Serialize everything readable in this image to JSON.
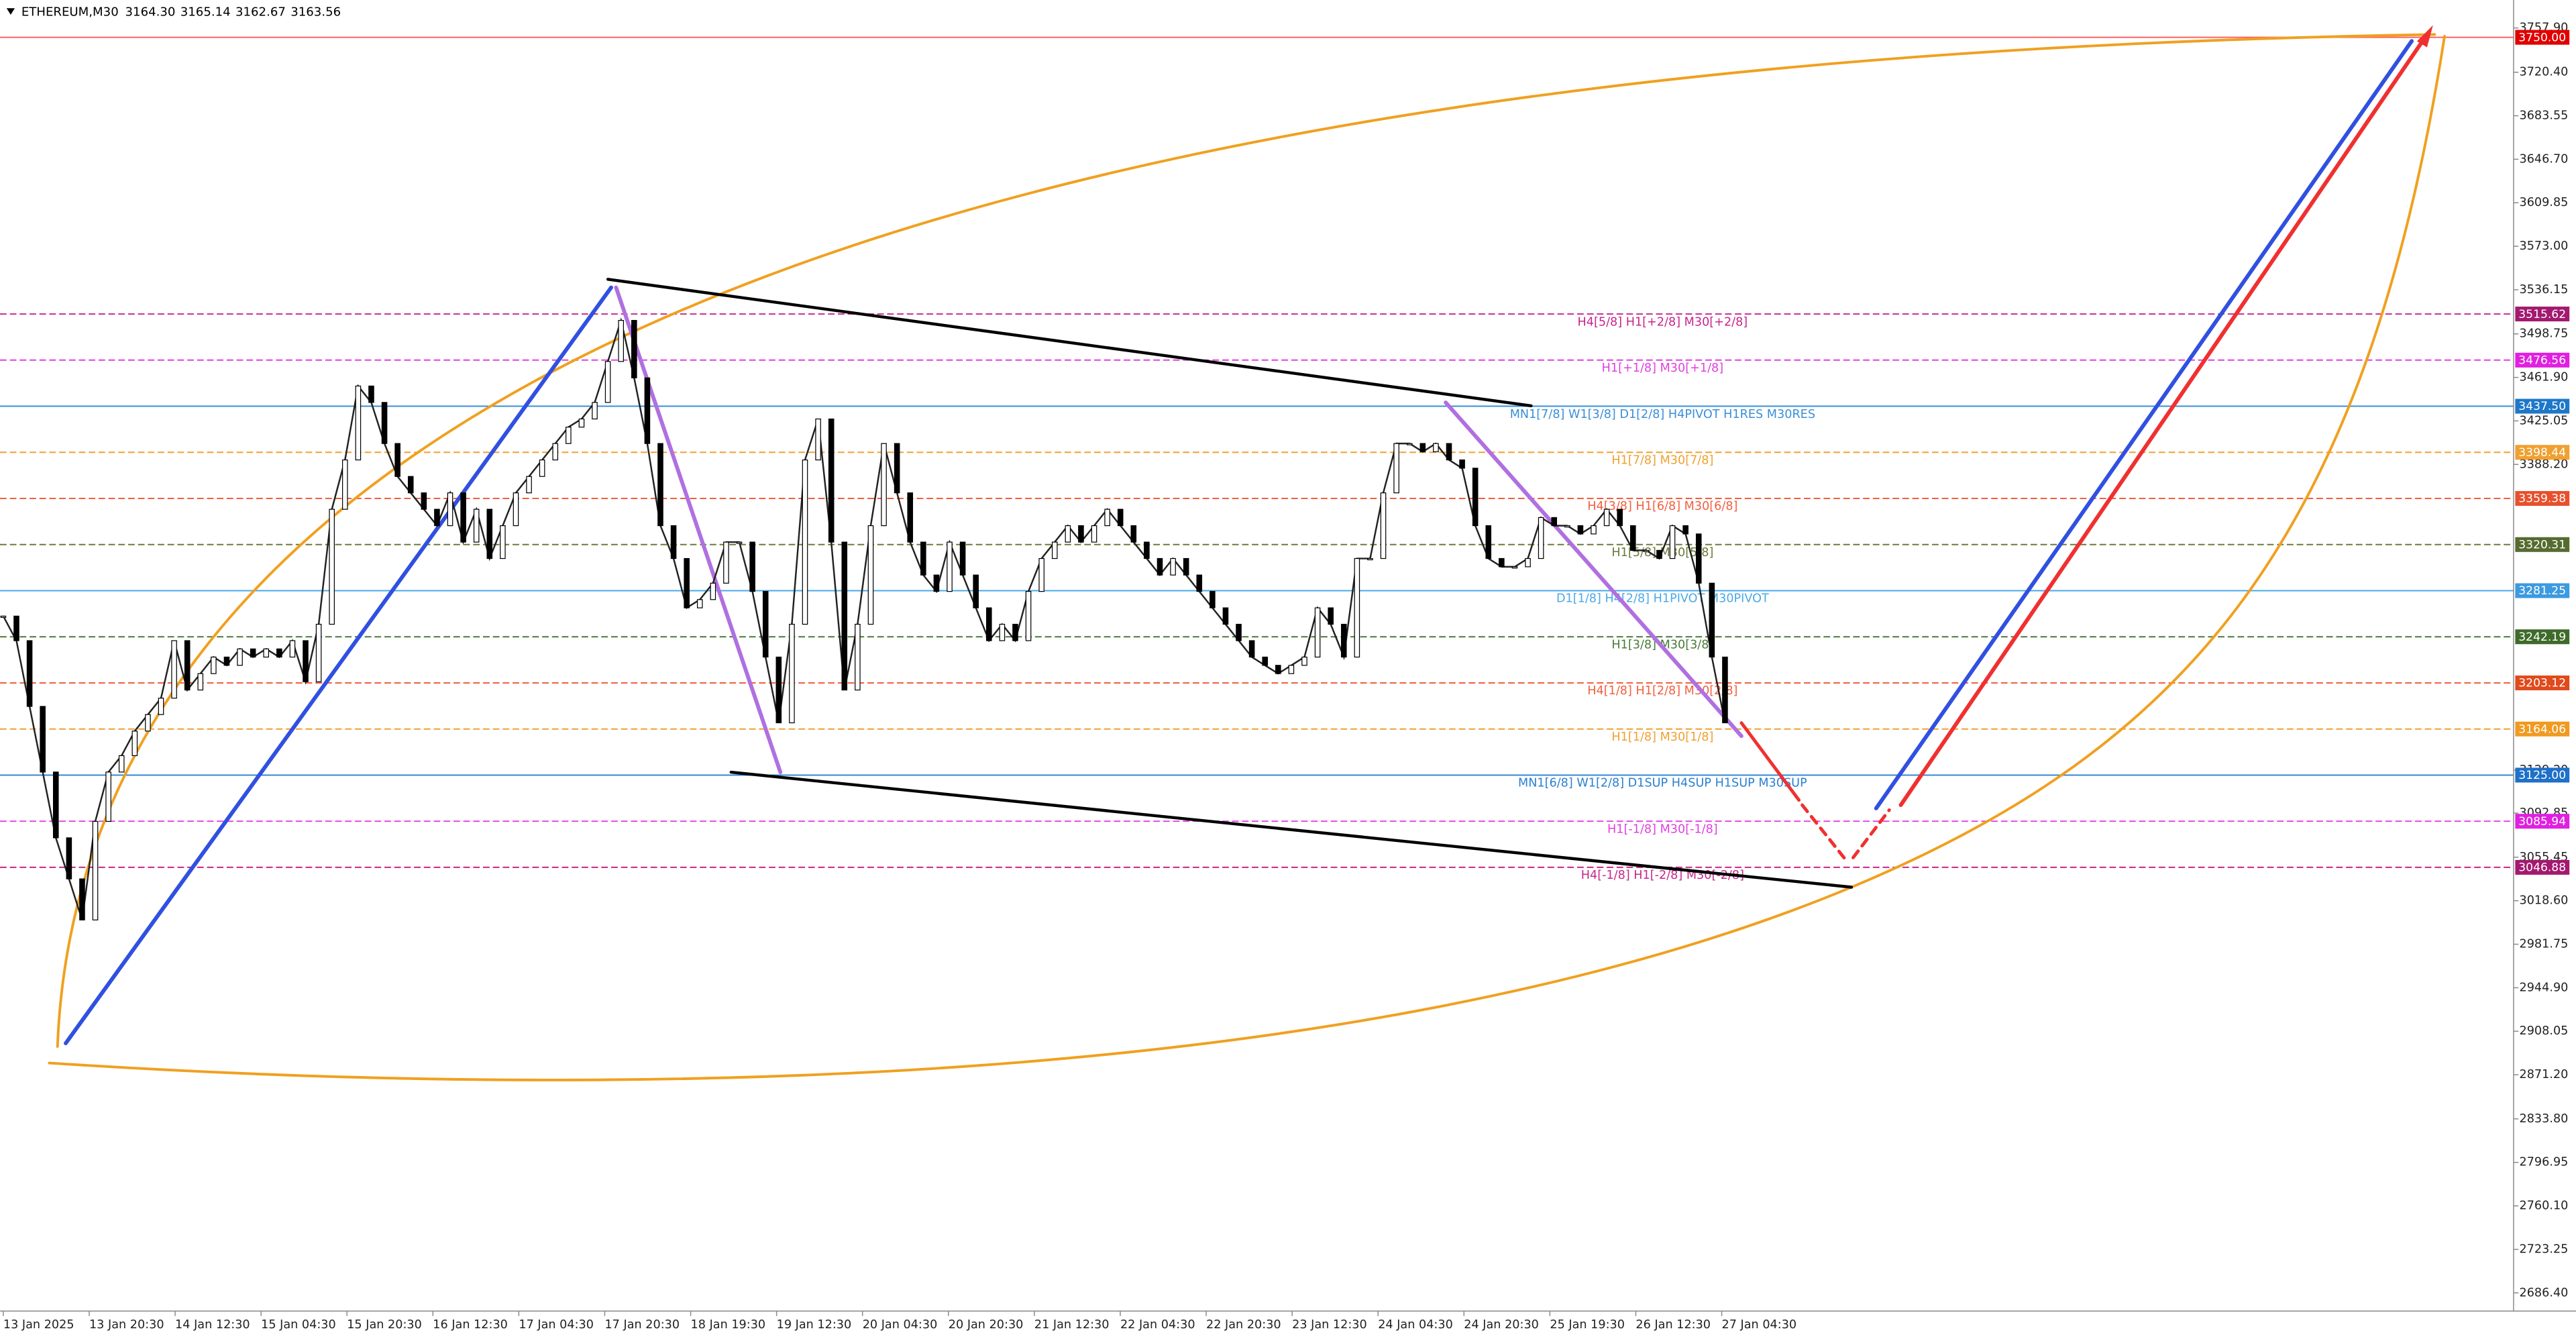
{
  "header": {
    "symbol": "ETHEREUM,M30",
    "ohlc": [
      "3164.30",
      "3165.14",
      "3162.67",
      "3163.56"
    ]
  },
  "chart_data": {
    "type": "line",
    "color": "#222222",
    "ylim": [
      2671.0,
      3781.6
    ],
    "yticks": [
      {
        "value": 3757.9,
        "label": "3757.90"
      },
      {
        "value": 3720.4,
        "label": "3720.40"
      },
      3683.55,
      {
        "value": 3646.7,
        "label": "3646.70"
      },
      3609.85,
      {
        "value": 3573.0,
        "label": "3573.00"
      },
      3536.15,
      3498.75,
      {
        "value": 3461.9,
        "label": "3461.90"
      },
      3425.05,
      {
        "value": 3388.2,
        "label": "3388.20"
      },
      {
        "value": 3129.2,
        "label": "3129.20"
      },
      3092.85,
      3055.45,
      {
        "value": 3018.6,
        "label": "3018.60"
      },
      2981.75,
      {
        "value": 2944.9,
        "label": "2944.90"
      },
      2908.05,
      {
        "value": 2871.2,
        "label": "2871.20"
      },
      {
        "value": 2833.8,
        "label": "2833.80"
      },
      2796.95,
      {
        "value": 2760.1,
        "label": "2760.10"
      },
      2723.25,
      {
        "value": 2686.4,
        "label": "2686.40"
      }
    ],
    "values": [
      3259.7,
      3238.9,
      3183.2,
      3127.6,
      3071.9,
      3037.1,
      3002.3,
      3085.8,
      3127.6,
      3141.5,
      3162.3,
      3176.3,
      3190.2,
      3238.9,
      3197.1,
      3211.0,
      3225.0,
      3218.0,
      3231.9,
      3225.0,
      3231.9,
      3225.0,
      3238.9,
      3204.1,
      3252.8,
      3350.2,
      3392.0,
      3454.6,
      3440.7,
      3405.9,
      3378.0,
      3364.1,
      3350.2,
      3336.3,
      3364.1,
      3322.4,
      3350.2,
      3308.5,
      3336.3,
      3364.1,
      3378.0,
      3392.0,
      3405.9,
      3419.8,
      3426.7,
      3440.7,
      3475.4,
      3510.2,
      3461.5,
      3405.9,
      3336.3,
      3308.5,
      3266.7,
      3273.7,
      3287.6,
      3322.4,
      3322.4,
      3280.6,
      3225.0,
      3169.3,
      3252.8,
      3392.0,
      3426.7,
      3322.4,
      3197.1,
      3252.8,
      3336.3,
      3405.9,
      3364.1,
      3322.4,
      3294.5,
      3280.6,
      3322.4,
      3294.5,
      3266.7,
      3238.9,
      3252.8,
      3238.9,
      3280.6,
      3308.5,
      3322.4,
      3336.3,
      3322.4,
      3336.3,
      3350.2,
      3336.3,
      3322.4,
      3308.5,
      3294.5,
      3308.5,
      3294.5,
      3280.6,
      3266.7,
      3252.8,
      3238.9,
      3225.0,
      3218.0,
      3211.0,
      3218.0,
      3225.0,
      3266.7,
      3252.8,
      3225.0,
      3308.5,
      3308.5,
      3364.1,
      3405.9,
      3405.9,
      3398.9,
      3405.9,
      3392.0,
      3385.0,
      3336.3,
      3308.5,
      3301.5,
      3301.5,
      3308.5,
      3343.2,
      3336.3,
      3336.3,
      3329.3,
      3336.3,
      3350.2,
      3336.3,
      3315.4,
      3315.4,
      3308.5,
      3336.3,
      3329.3,
      3287.6,
      3225.0,
      3169.3
    ],
    "time_labels": [
      "13 Jan 2025",
      "13 Jan 20:30",
      "14 Jan 12:30",
      "15 Jan 04:30",
      "15 Jan 20:30",
      "16 Jan 12:30",
      "17 Jan 04:30",
      "17 Jan 20:30",
      "18 Jan 19:30",
      "19 Jan 12:30",
      "20 Jan 04:30",
      "20 Jan 20:30",
      "21 Jan 12:30",
      "22 Jan 04:30",
      "22 Jan 20:30",
      "23 Jan 12:30",
      "24 Jan 04:30",
      "24 Jan 20:30",
      "25 Jan 19:30",
      "26 Jan 12:30",
      "27 Jan 04:30"
    ],
    "levels": [
      {
        "price": 3750.0,
        "tag": "3750.00",
        "color": "#ff6060",
        "tag_color": "#e00000",
        "style": "solid"
      },
      {
        "price": 3515.62,
        "tag": "3515.62",
        "text": "H4[5/8] H1[+2/8] M30[+2/8]",
        "color": "#c8258c",
        "tag_color": "#a3196f",
        "style": "dashed"
      },
      {
        "price": 3476.56,
        "tag": "3476.56",
        "text": "H1[+1/8] M30[+1/8]",
        "color": "#e040e0",
        "tag_color": "#e020e0",
        "style": "dashed"
      },
      {
        "price": 3437.5,
        "tag": "3437.50",
        "text": "MN1[7/8] W1[3/8] D1[2/8] H4PIVOT H1RES M30RES",
        "color": "#3a8fd8",
        "tag_color": "#1e78c8",
        "style": "solid"
      },
      {
        "price": 3398.44,
        "tag": "3398.44",
        "text": "H1[7/8] M30[7/8]",
        "color": "#f0a030",
        "tag_color": "#f0a030",
        "style": "dashed"
      },
      {
        "price": 3359.38,
        "tag": "3359.38",
        "text": "H4[3/8] H1[6/8] M30[6/8]",
        "color": "#f06040",
        "tag_color": "#e8502c",
        "style": "dashed"
      },
      {
        "price": 3320.31,
        "tag": "3320.31",
        "text": "H1[5/8] M30[5/8]",
        "color": "#6b7a3a",
        "tag_color": "#556b2f",
        "style": "dashed"
      },
      {
        "price": 3281.25,
        "tag": "3281.25",
        "text": "D1[1/8] H4[2/8] H1PIVOT M30PIVOT",
        "color": "#4aa8e8",
        "tag_color": "#3c9ae0",
        "style": "solid"
      },
      {
        "price": 3242.19,
        "tag": "3242.19",
        "text": "H1[3/8] M30[3/8]",
        "color": "#4a7a3a",
        "tag_color": "#3f6b2a",
        "style": "dashed"
      },
      {
        "price": 3203.12,
        "tag": "3203.12",
        "text": "H4[1/8] H1[2/8] M30[2/8]",
        "color": "#f06040",
        "tag_color": "#e04a1c",
        "style": "dashed"
      },
      {
        "price": 3164.06,
        "tag": "3164.06",
        "text": "H1[1/8] M30[1/8]",
        "color": "#f0a030",
        "tag_color": "#f09a20",
        "style": "dashed"
      },
      {
        "price": 3125.0,
        "tag": "3125.00",
        "text": "MN1[6/8] W1[2/8] D1SUP H4SUP H1SUP M30SUP",
        "color": "#2a80d0",
        "tag_color": "#1e70c8",
        "style": "solid"
      },
      {
        "price": 3085.94,
        "tag": "3085.94",
        "text": "H1[-1/8] M30[-1/8]",
        "color": "#e040e0",
        "tag_color": "#e020e0",
        "style": "dashed"
      },
      {
        "price": 3046.88,
        "tag": "3046.88",
        "text": "H4[-1/8] H1[-2/8] M30[-2/8]",
        "color": "#c8258c",
        "tag_color": "#a3196f",
        "style": "dashed"
      }
    ]
  }
}
